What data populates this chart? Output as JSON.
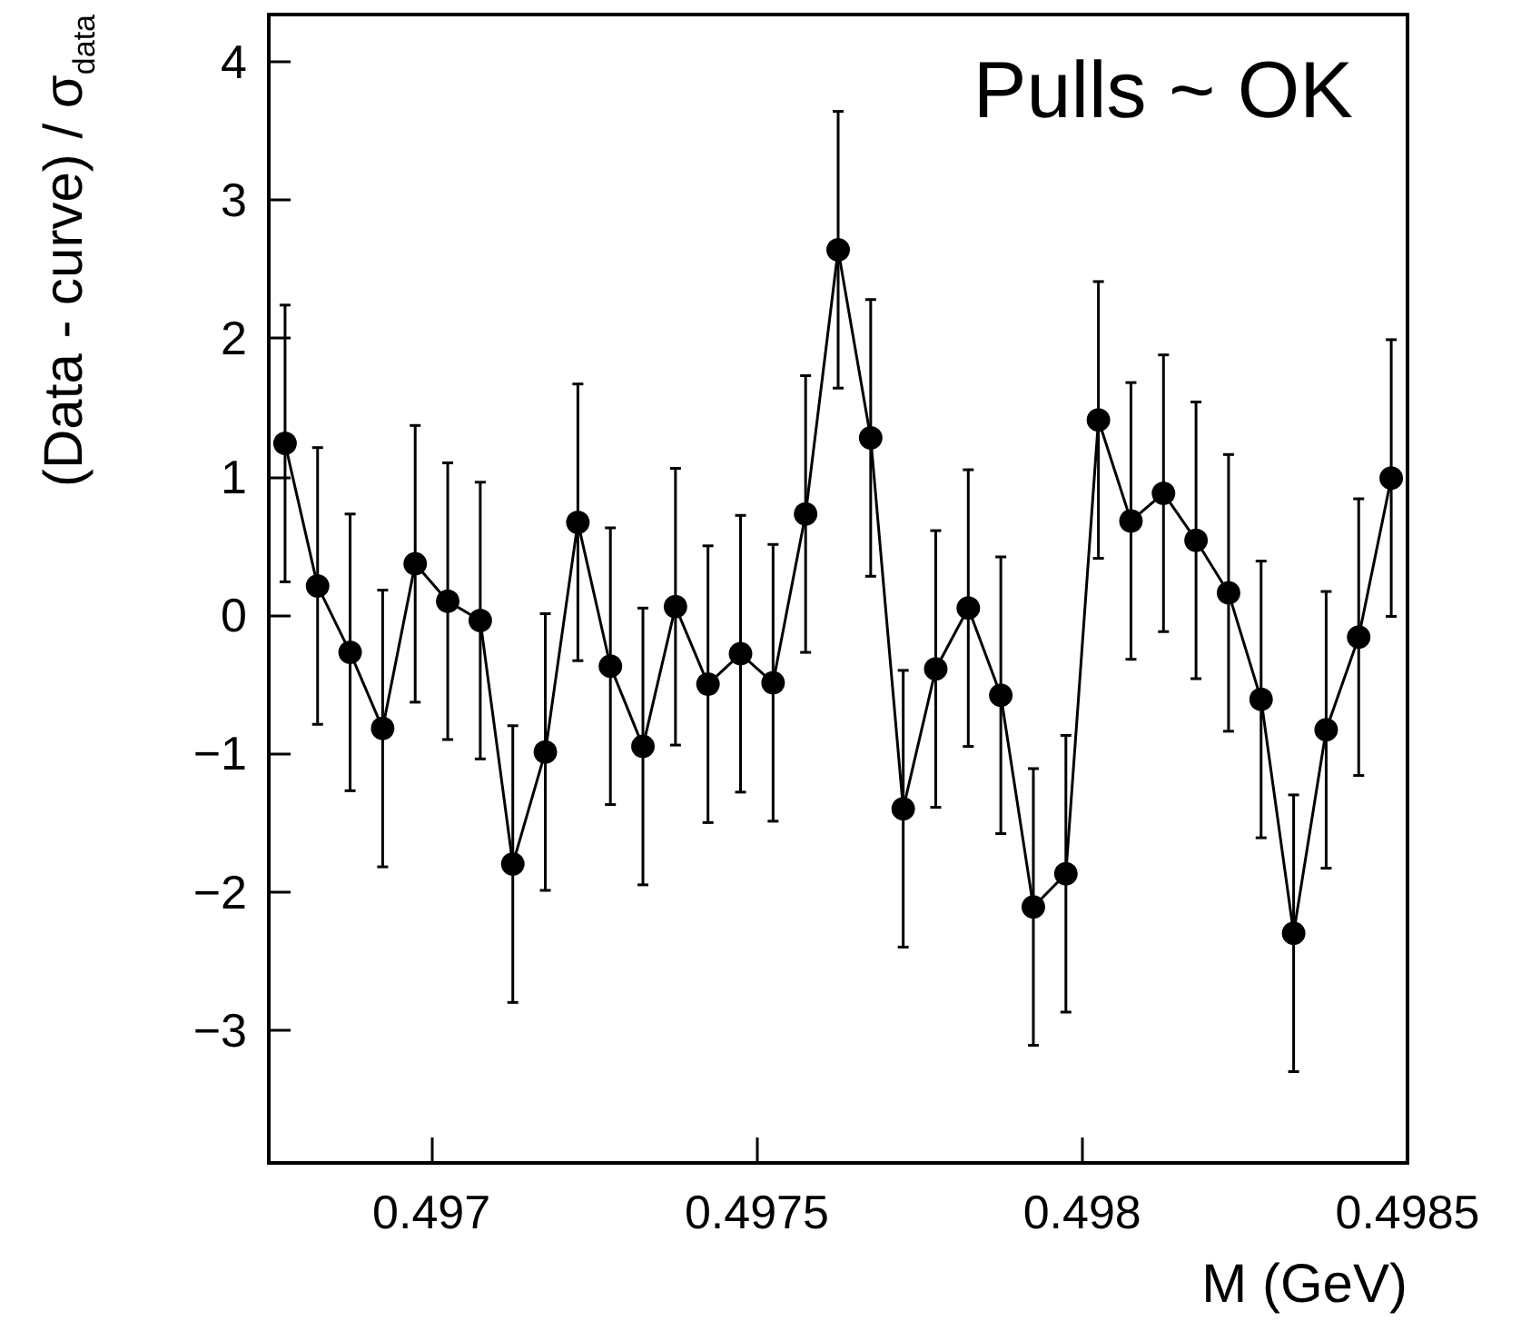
{
  "chart_data": {
    "type": "line",
    "xlabel": "M (GeV)",
    "ylabel": "(Data - curve) / σ$_{data}$",
    "annotations": [
      "Pulls ~ OK"
    ],
    "x": [
      0.496775,
      0.496825,
      0.496875,
      0.496925,
      0.496975,
      0.497025,
      0.497075,
      0.497125,
      0.497175,
      0.497225,
      0.497275,
      0.497325,
      0.497375,
      0.497425,
      0.497475,
      0.497525,
      0.497575,
      0.497625,
      0.497675,
      0.497725,
      0.497775,
      0.497825,
      0.497875,
      0.497925,
      0.497975,
      0.498025,
      0.498075,
      0.498125,
      0.498175,
      0.498225,
      0.498275,
      0.498325,
      0.498375,
      0.498425,
      0.498475
    ],
    "series": [
      {
        "color": "#000000",
        "values": [
          1.24,
          0.21,
          -0.27,
          -0.82,
          0.37,
          0.1,
          -0.04,
          -1.8,
          -0.99,
          0.67,
          -0.37,
          -0.95,
          0.06,
          -0.5,
          -0.28,
          -0.49,
          0.73,
          2.64,
          1.28,
          -1.4,
          -0.39,
          0.05,
          -0.58,
          -2.11,
          -1.87,
          1.41,
          0.68,
          0.88,
          0.54,
          0.16,
          -0.61,
          -2.3,
          -0.83,
          -0.16,
          0.99
        ],
        "errors": [
          1,
          1,
          1,
          1,
          1,
          1,
          1,
          1,
          1,
          1,
          1,
          1,
          1,
          1,
          1,
          1,
          1,
          1,
          1,
          1,
          1,
          1,
          1,
          1,
          1,
          1,
          1,
          1,
          1,
          1,
          1,
          1,
          1,
          1,
          1
        ]
      }
    ],
    "xlim": [
      0.49675,
      0.4985
    ],
    "xticks": [
      0.497,
      0.4975,
      0.498,
      0.4985
    ],
    "ylim": [
      -3.96,
      4.34
    ],
    "yticks": [
      -3,
      -2,
      -1,
      0,
      1,
      2,
      3,
      4
    ],
    "marker": "circle",
    "line_style": "solid"
  }
}
